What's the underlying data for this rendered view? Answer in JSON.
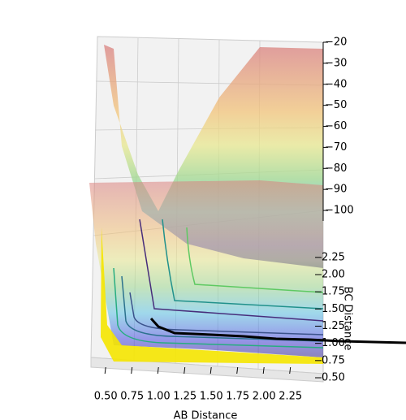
{
  "chart_data": {
    "type": "surface3d",
    "xlabel": "AB Distance",
    "ylabel": "BC Distance",
    "xlim": [
      0.36,
      2.56
    ],
    "ylim": [
      0.5,
      2.39
    ],
    "zlim": [
      -105,
      -20
    ],
    "xticks": [
      {
        "value": 0.5,
        "label": "0.50"
      },
      0.75,
      {
        "value": 1,
        "label": "1.00"
      },
      1.25,
      {
        "value": 1.5,
        "label": "1.50"
      },
      1.75,
      {
        "value": 2,
        "label": "2.00"
      },
      2.25
    ],
    "yticks": [
      {
        "value": 0.5,
        "label": "0.50"
      },
      0.75,
      {
        "value": 1,
        "label": "1.00"
      },
      1.25,
      {
        "value": 1.5,
        "label": "1.50"
      },
      1.75,
      {
        "value": 2,
        "label": "2.00"
      },
      2.25
    ],
    "zticks": [
      {
        "value": -20,
        "label": "−20"
      },
      {
        "value": -30,
        "label": "−30"
      },
      {
        "value": -40,
        "label": "−40"
      },
      {
        "value": -50,
        "label": "−50"
      },
      {
        "value": -60,
        "label": "−60"
      },
      {
        "value": -70,
        "label": "−70"
      },
      {
        "value": -80,
        "label": "−80"
      },
      {
        "value": -90,
        "label": "−90"
      },
      {
        "value": -100,
        "label": "−100"
      }
    ]
  }
}
